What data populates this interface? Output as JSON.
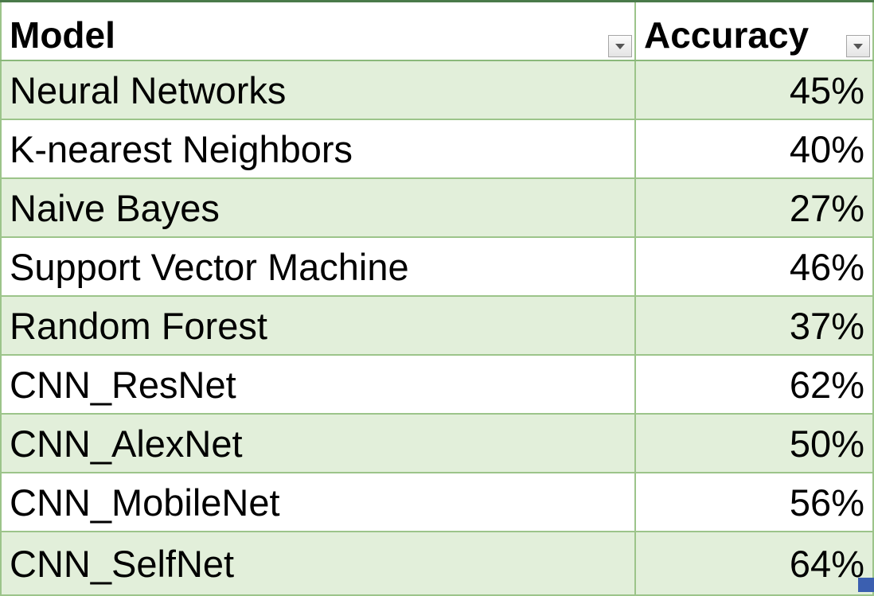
{
  "table": {
    "headers": {
      "model": "Model",
      "accuracy": "Accuracy"
    },
    "header_filter_icon": "chevron-down-icon",
    "rows": [
      {
        "model": "Neural Networks",
        "accuracy": "45%"
      },
      {
        "model": "K-nearest Neighbors",
        "accuracy": "40%"
      },
      {
        "model": "Naive Bayes",
        "accuracy": "27%"
      },
      {
        "model": "Support Vector Machine",
        "accuracy": "46%"
      },
      {
        "model": "Random Forest",
        "accuracy": "37%"
      },
      {
        "model": "CNN_ResNet",
        "accuracy": "62%"
      },
      {
        "model": "CNN_AlexNet",
        "accuracy": "50%"
      },
      {
        "model": "CNN_MobileNet",
        "accuracy": "56%"
      },
      {
        "model": "CNN_SelfNet",
        "accuracy": "64%"
      }
    ]
  },
  "colors": {
    "band": "#e2efda",
    "border": "#9cc48a",
    "top_rule": "#4a7a4a",
    "selection_handle": "#3b5fb0"
  }
}
